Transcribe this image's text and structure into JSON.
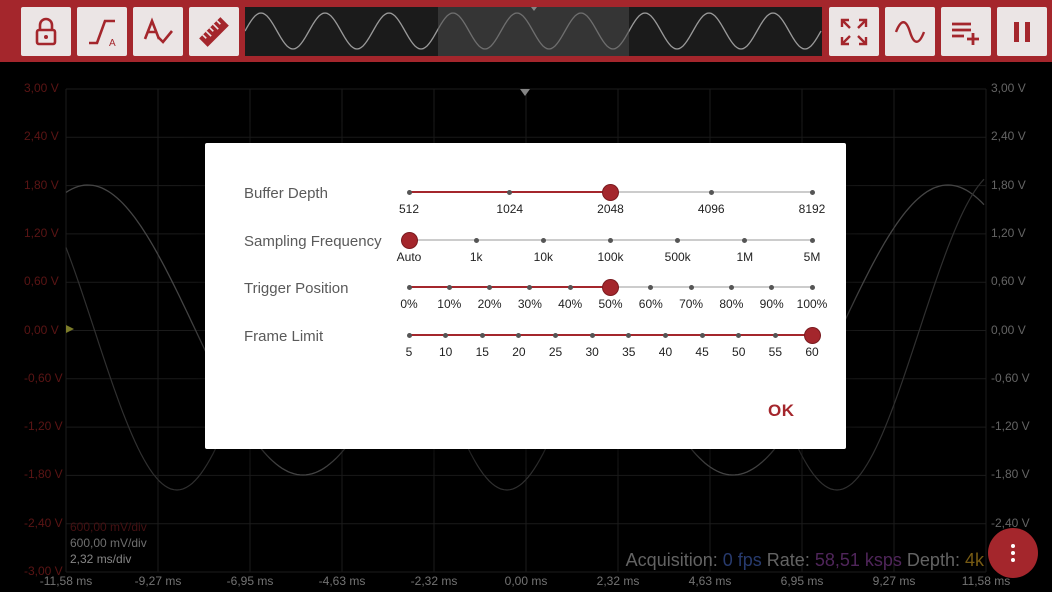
{
  "colors": {
    "accent": "#a4262c",
    "toolbar_button_bg": "#ebe5e5"
  },
  "toolbar": {
    "buttons": [
      {
        "name": "lock-button",
        "icon": "lock-icon"
      },
      {
        "name": "trigger-mode-button",
        "icon": "trigger-edge-icon",
        "label": "A"
      },
      {
        "name": "auto-setup-button",
        "icon": "auto-check-icon"
      },
      {
        "name": "measure-button",
        "icon": "ruler-icon"
      },
      {
        "name": "zoom-fit-button",
        "icon": "fit-screen-icon"
      },
      {
        "name": "waveform-button",
        "icon": "sine-wave-icon"
      },
      {
        "name": "add-channel-button",
        "icon": "playlist-add-icon"
      },
      {
        "name": "pause-button",
        "icon": "pause-icon"
      }
    ]
  },
  "scope": {
    "y_labels_left": [
      "3,00 V",
      "2,40 V",
      "1,80 V",
      "1,20 V",
      "0,60 V",
      "0,00 V",
      "-0,60 V",
      "-1,20 V",
      "-1,80 V",
      "-2,40 V",
      "-3,00 V"
    ],
    "y_labels_right": [
      "3,00 V",
      "2,40 V",
      "1,80 V",
      "1,20 V",
      "0,60 V",
      "0,00 V",
      "-0,60 V",
      "-1,20 V",
      "-1,80 V",
      "-2,40 V"
    ],
    "x_labels": [
      "-11,58 ms",
      "-9,27 ms",
      "-6,95 ms",
      "-4,63 ms",
      "-2,32 ms",
      "0,00 ms",
      "2,32 ms",
      "4,63 ms",
      "6,95 ms",
      "9,27 ms",
      "11,58 ms"
    ],
    "div_ch1": "600,00 mV/div",
    "div_ch2": "600,00 mV/div",
    "time_div": "2,32 ms/div"
  },
  "status": {
    "acq_label": "Acquisition:",
    "acq_value": "0 fps",
    "rate_label": "Rate:",
    "rate_value": "58,51 ksps",
    "depth_label": "Depth:",
    "depth_value": "4k"
  },
  "fab": {
    "icon": "more-vert-icon"
  },
  "dialog": {
    "ok_label": "OK",
    "rows": [
      {
        "key": "buffer",
        "label": "Buffer Depth",
        "ticks": [
          "512",
          "1024",
          "2048",
          "4096",
          "8192"
        ],
        "selected_index": 2
      },
      {
        "key": "sampling",
        "label": "Sampling Frequency",
        "ticks": [
          "Auto",
          "1k",
          "10k",
          "100k",
          "500k",
          "1M",
          "5M"
        ],
        "selected_index": 0
      },
      {
        "key": "trigger",
        "label": "Trigger Position",
        "ticks": [
          "0%",
          "10%",
          "20%",
          "30%",
          "40%",
          "50%",
          "60%",
          "70%",
          "80%",
          "90%",
          "100%"
        ],
        "selected_index": 5
      },
      {
        "key": "frame",
        "label": "Frame Limit",
        "ticks": [
          "5",
          "10",
          "15",
          "20",
          "25",
          "30",
          "35",
          "40",
          "45",
          "50",
          "55",
          "60"
        ],
        "selected_index": 11
      }
    ]
  }
}
